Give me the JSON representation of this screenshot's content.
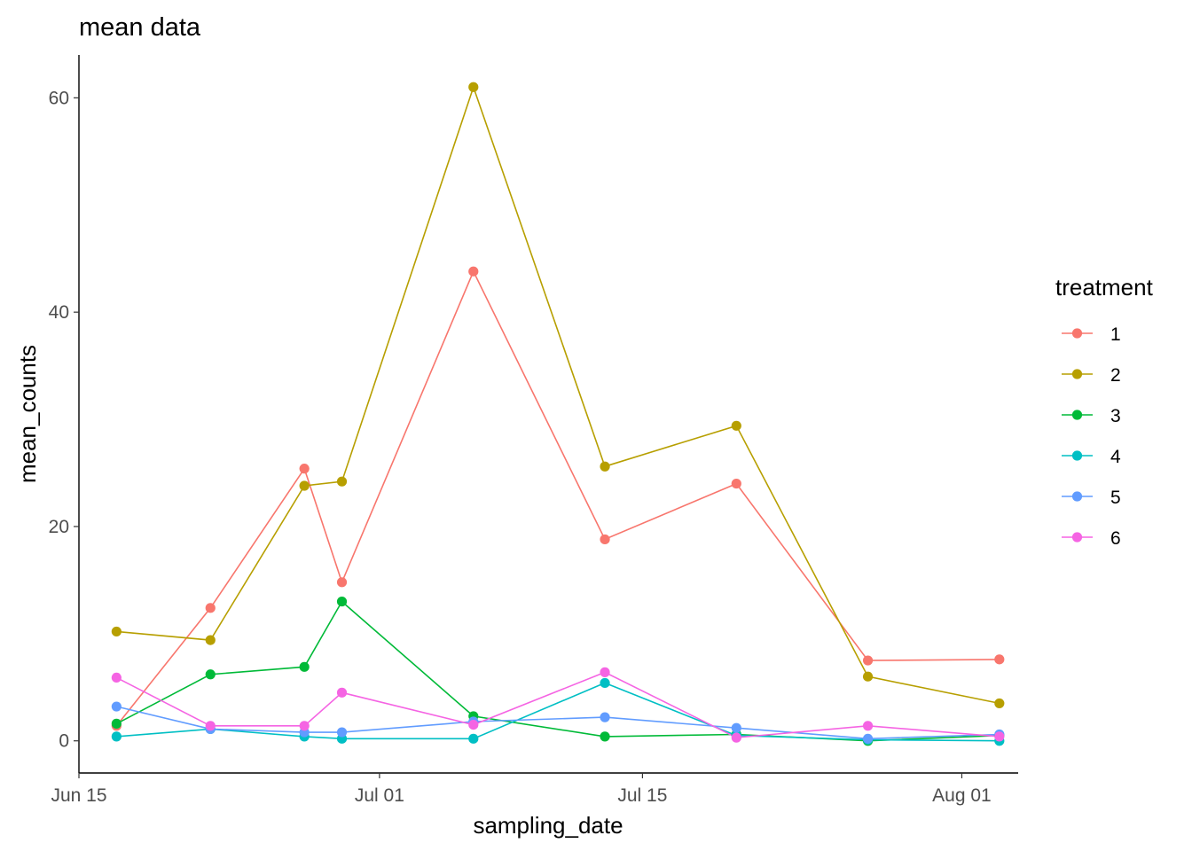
{
  "chart_data": {
    "type": "line",
    "title": "mean data",
    "xlabel": "sampling_date",
    "ylabel": "mean_counts",
    "x_ticks": [
      "Jun 15",
      "Jul 01",
      "Jul 15",
      "Aug 01"
    ],
    "x_tick_dates": [
      "2023-06-15",
      "2023-07-01",
      "2023-07-15",
      "2023-08-01"
    ],
    "y_ticks": [
      0,
      20,
      40,
      60
    ],
    "xlim": [
      "2023-06-15",
      "2023-08-04"
    ],
    "ylim": [
      -3,
      64
    ],
    "grid": false,
    "legend": {
      "title": "treatment",
      "position": "right"
    },
    "dates": [
      "2023-06-17",
      "2023-06-22",
      "2023-06-27",
      "2023-06-29",
      "2023-07-06",
      "2023-07-13",
      "2023-07-20",
      "2023-07-27",
      "2023-08-03"
    ],
    "series": [
      {
        "name": "1",
        "color": "#F8766D",
        "values": [
          1.4,
          12.4,
          25.4,
          14.8,
          43.8,
          18.8,
          24.0,
          7.5,
          7.6
        ]
      },
      {
        "name": "2",
        "color": "#B79F00",
        "values": [
          10.2,
          9.4,
          23.8,
          24.2,
          61.0,
          25.6,
          29.4,
          6.0,
          3.5
        ]
      },
      {
        "name": "3",
        "color": "#00BA38",
        "values": [
          1.6,
          6.2,
          6.9,
          13.0,
          2.3,
          0.4,
          0.6,
          0.0,
          0.5
        ]
      },
      {
        "name": "4",
        "color": "#00BFC4",
        "values": [
          0.4,
          1.1,
          0.4,
          0.2,
          0.2,
          5.4,
          0.5,
          0.1,
          0.0
        ]
      },
      {
        "name": "5",
        "color": "#619CFF",
        "values": [
          3.2,
          1.1,
          0.8,
          0.8,
          1.8,
          2.2,
          1.2,
          0.2,
          0.6
        ]
      },
      {
        "name": "6",
        "color": "#F564E3",
        "values": [
          5.9,
          1.4,
          1.4,
          4.5,
          1.5,
          6.4,
          0.3,
          1.4,
          0.4
        ]
      }
    ]
  }
}
